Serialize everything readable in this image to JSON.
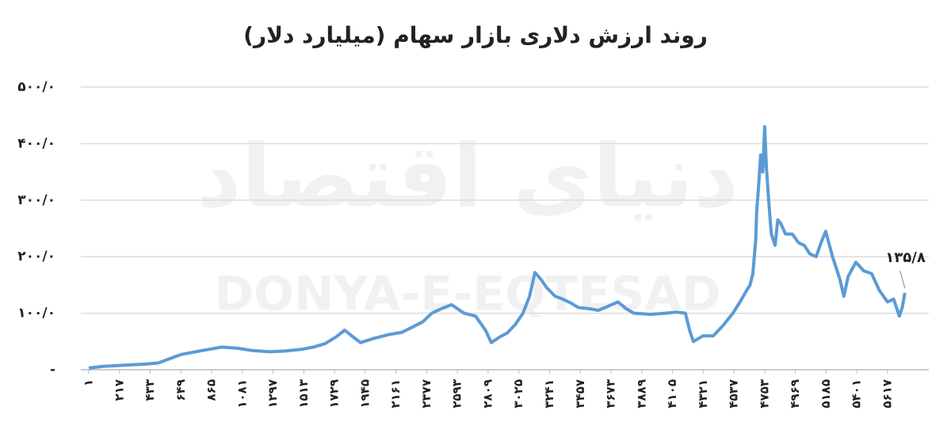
{
  "chart_data": {
    "type": "line",
    "title": "روند ارزش دلاری بازار سهام (میلیارد دلار)",
    "watermark": "DONYA-E-EQTESAD",
    "watermark_logo": "دنیای اقتصاد",
    "series": [
      {
        "name": "ارزش دلاری بازار سهام",
        "color": "#5b9bd5",
        "x": [
          1,
          100,
          250,
          400,
          491,
          575,
          650,
          714,
          800,
          937,
          1048,
          1150,
          1271,
          1380,
          1494,
          1580,
          1661,
          1740,
          1800,
          1860,
          1912,
          2000,
          2107,
          2200,
          2274,
          2350,
          2413,
          2480,
          2552,
          2640,
          2720,
          2790,
          2831,
          2890,
          2943,
          3000,
          3054,
          3100,
          3138,
          3180,
          3221,
          3280,
          3333,
          3390,
          3444,
          3520,
          3583,
          3650,
          3722,
          3780,
          3834,
          3950,
          4057,
          4130,
          4196,
          4225,
          4252,
          4320,
          4391,
          4460,
          4530,
          4580,
          4614,
          4650,
          4670,
          4690,
          4697,
          4712,
          4725,
          4740,
          4753,
          4765,
          4781,
          4800,
          4826,
          4845,
          4864,
          4900,
          4948,
          4990,
          5032,
          5070,
          5115,
          5150,
          5182,
          5230,
          5282,
          5310,
          5340,
          5394,
          5450,
          5505,
          5560,
          5617,
          5660,
          5700,
          5720,
          5739
        ],
        "values": [
          3,
          6,
          8,
          10,
          12,
          20,
          27,
          30,
          34,
          40,
          38,
          34,
          32,
          33,
          36,
          40,
          46,
          58,
          70,
          58,
          48,
          55,
          62,
          66,
          75,
          85,
          100,
          108,
          115,
          100,
          95,
          70,
          48,
          58,
          65,
          80,
          100,
          130,
          172,
          160,
          145,
          130,
          125,
          118,
          110,
          108,
          105,
          112,
          120,
          108,
          100,
          98,
          100,
          102,
          100,
          70,
          50,
          60,
          60,
          78,
          100,
          120,
          135,
          150,
          170,
          230,
          280,
          330,
          380,
          350,
          430,
          360,
          300,
          240,
          220,
          265,
          260,
          240,
          240,
          225,
          220,
          205,
          200,
          225,
          245,
          200,
          160,
          130,
          165,
          190,
          175,
          170,
          140,
          120,
          125,
          95,
          110,
          135.8
        ]
      }
    ],
    "annotation": {
      "x": 5739,
      "value": 135.8,
      "label": "۱۳۵/۸"
    },
    "xlim": [
      1,
      5740
    ],
    "xticks": [
      {
        "value": 1,
        "label": "۱"
      },
      {
        "value": 217,
        "label": "۲۱۷"
      },
      {
        "value": 433,
        "label": "۴۳۳"
      },
      {
        "value": 649,
        "label": "۶۴۹"
      },
      {
        "value": 865,
        "label": "۸۶۵"
      },
      {
        "value": 1081,
        "label": "۱۰۸۱"
      },
      {
        "value": 1297,
        "label": "۱۲۹۷"
      },
      {
        "value": 1513,
        "label": "۱۵۱۳"
      },
      {
        "value": 1729,
        "label": "۱۷۲۹"
      },
      {
        "value": 1945,
        "label": "۱۹۴۵"
      },
      {
        "value": 2161,
        "label": "۲۱۶۱"
      },
      {
        "value": 2377,
        "label": "۲۳۷۷"
      },
      {
        "value": 2593,
        "label": "۲۵۹۳"
      },
      {
        "value": 2809,
        "label": "۲۸۰۹"
      },
      {
        "value": 3025,
        "label": "۳۰۲۵"
      },
      {
        "value": 3241,
        "label": "۳۲۴۱"
      },
      {
        "value": 3457,
        "label": "۳۴۵۷"
      },
      {
        "value": 3673,
        "label": "۳۶۷۳"
      },
      {
        "value": 3889,
        "label": "۳۸۸۹"
      },
      {
        "value": 4105,
        "label": "۴۱۰۵"
      },
      {
        "value": 4321,
        "label": "۴۳۲۱"
      },
      {
        "value": 4537,
        "label": "۴۵۳۷"
      },
      {
        "value": 4753,
        "label": "۴۷۵۳"
      },
      {
        "value": 4969,
        "label": "۴۹۶۹"
      },
      {
        "value": 5185,
        "label": "۵۱۸۵"
      },
      {
        "value": 5401,
        "label": "۵۴۰۱"
      },
      {
        "value": 5617,
        "label": "۵۶۱۷"
      }
    ],
    "ylim": [
      0,
      500
    ],
    "yticks": [
      {
        "value": 0,
        "label": "-"
      },
      {
        "value": 100,
        "label": "۱۰۰/۰"
      },
      {
        "value": 200,
        "label": "۲۰۰/۰"
      },
      {
        "value": 300,
        "label": "۳۰۰/۰"
      },
      {
        "value": 400,
        "label": "۴۰۰/۰"
      },
      {
        "value": 500,
        "label": "۵۰۰/۰"
      }
    ],
    "grid": true
  }
}
